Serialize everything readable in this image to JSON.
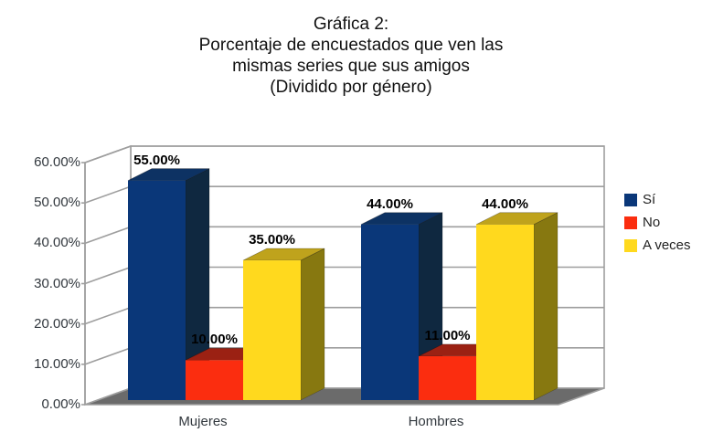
{
  "title": {
    "lines": [
      "Gráfica 2:",
      "Porcentaje de encuestados que ven las",
      "mismas series que sus amigos",
      "(Dividido por género)"
    ]
  },
  "chart_data": {
    "type": "bar",
    "projection": "3d",
    "title": "Gráfica 2: Porcentaje de encuestados que ven las mismas series que sus amigos (Dividido por género)",
    "categories": [
      "Mujeres",
      "Hombres"
    ],
    "series": [
      {
        "name": "Sí",
        "values": [
          55,
          44
        ],
        "labels": [
          "55.00%",
          "44.00%"
        ],
        "color": "#0a3779",
        "color_top": "#0d3263",
        "color_side": "#0f2840"
      },
      {
        "name": "No",
        "values": [
          10,
          11
        ],
        "labels": [
          "10.00%",
          "11.00%"
        ],
        "color": "#fb2d0f",
        "color_top": "#9b2113",
        "color_side": "#6e1708"
      },
      {
        "name": "A veces",
        "values": [
          35,
          44
        ],
        "labels": [
          "35.00%",
          "44.00%"
        ],
        "color": "#ffd91e",
        "color_top": "#bfa31c",
        "color_side": "#877810"
      }
    ],
    "y_axis": {
      "ticks": [
        "0.00%",
        "10.00%",
        "20.00%",
        "30.00%",
        "40.00%",
        "50.00%",
        "60.00%"
      ],
      "min": 0,
      "max": 60,
      "step": 10,
      "unit": "%"
    },
    "legend": {
      "position": "right",
      "entries": [
        "Sí",
        "No",
        "A veces"
      ]
    },
    "grid": "on",
    "wall_color": "#ffffff",
    "floor_color": "#6b6b6b",
    "grid_color": "#9e9e9e"
  }
}
